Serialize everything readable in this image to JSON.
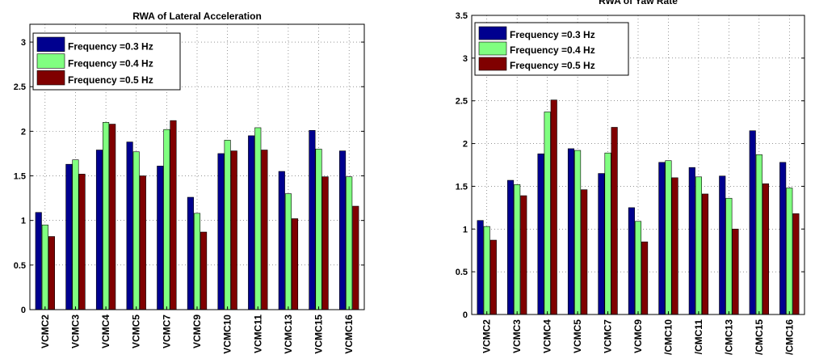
{
  "chart_data": [
    {
      "type": "bar",
      "title": "RWA of Lateral Acceleration",
      "categories": [
        "VCMC2",
        "VCMC3",
        "VCMC4",
        "VCMC5",
        "VCMC7",
        "VCMC9",
        "VCMC10",
        "VCMC11",
        "VCMC13",
        "VCMC15",
        "VCMC16"
      ],
      "yticks": [
        "0",
        "0.5",
        "1",
        "1.5",
        "2",
        "2.5",
        "3"
      ],
      "ylim": [
        0,
        3.2
      ],
      "grid": true,
      "legend_position": "top-left",
      "series": [
        {
          "name": "Frequency =0.3 Hz",
          "color": "#00008F",
          "values": [
            1.09,
            1.63,
            1.79,
            1.88,
            1.61,
            1.26,
            1.75,
            1.95,
            1.55,
            2.01,
            1.78
          ]
        },
        {
          "name": "Frequency =0.4 Hz",
          "color": "#80FF80",
          "values": [
            0.95,
            1.68,
            2.1,
            1.77,
            2.02,
            1.08,
            1.9,
            2.04,
            1.3,
            1.8,
            1.49
          ]
        },
        {
          "name": "Frequency =0.5 Hz",
          "color": "#800000",
          "values": [
            0.82,
            1.52,
            2.08,
            1.5,
            2.12,
            0.87,
            1.78,
            1.79,
            1.02,
            1.49,
            1.16
          ]
        }
      ]
    },
    {
      "type": "bar",
      "title": "RWA of Yaw Rate",
      "categories": [
        "VCMC2",
        "VCMC3",
        "VCMC4",
        "VCMC5",
        "VCMC7",
        "VCMC9",
        "/CMC10",
        "/CMC11",
        "/CMC13",
        "/CMC15",
        "/CMC16"
      ],
      "yticks": [
        "0",
        "0.5",
        "1",
        "1.5",
        "2",
        "2.5",
        "3",
        "3.5"
      ],
      "ylim": [
        0,
        3.5
      ],
      "grid": true,
      "legend_position": "top-left",
      "series": [
        {
          "name": "Frequency =0.3 Hz",
          "color": "#00008F",
          "values": [
            1.1,
            1.57,
            1.88,
            1.94,
            1.65,
            1.25,
            1.78,
            1.72,
            1.62,
            2.15,
            1.78
          ]
        },
        {
          "name": "Frequency =0.4 Hz",
          "color": "#80FF80",
          "values": [
            1.03,
            1.52,
            2.37,
            1.92,
            1.89,
            1.09,
            1.8,
            1.61,
            1.36,
            1.87,
            1.48
          ]
        },
        {
          "name": "Frequency =0.5 Hz",
          "color": "#800000",
          "values": [
            0.87,
            1.39,
            2.51,
            1.46,
            2.19,
            0.85,
            1.6,
            1.41,
            1.0,
            1.53,
            1.18
          ]
        }
      ]
    }
  ]
}
